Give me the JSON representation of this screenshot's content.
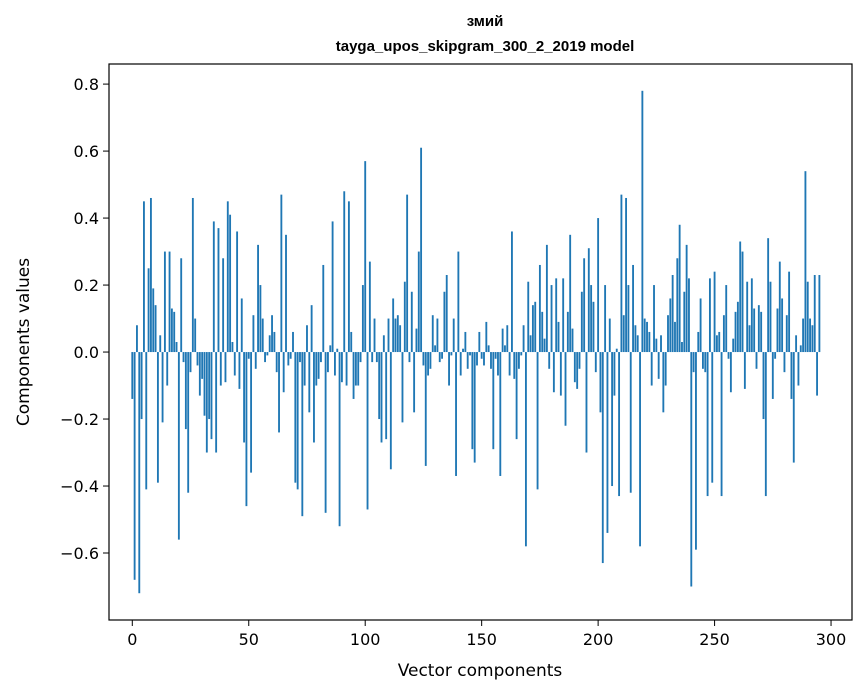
{
  "chart_data": {
    "type": "bar",
    "title": "змий",
    "subtitle": "tayga_upos_skipgram_300_2_2019 model",
    "xlabel": "Vector components",
    "ylabel": "Components values",
    "xlim": [
      -10,
      309
    ],
    "ylim": [
      -0.8,
      0.86
    ],
    "xticks": [
      0,
      50,
      100,
      150,
      200,
      250,
      300
    ],
    "xtick_labels": [
      "0",
      "50",
      "100",
      "150",
      "200",
      "250",
      "300"
    ],
    "yticks": [
      -0.6,
      -0.4,
      -0.2,
      0.0,
      0.2,
      0.4,
      0.6,
      0.8
    ],
    "ytick_labels": [
      "−0.6",
      "−0.4",
      "−0.2",
      "0.0",
      "0.2",
      "0.4",
      "0.6",
      "0.8"
    ],
    "grid": false,
    "bar_color": "#1f77b4",
    "values": [
      -0.14,
      -0.68,
      0.08,
      -0.72,
      -0.2,
      0.45,
      -0.41,
      0.25,
      0.46,
      0.19,
      0.14,
      -0.39,
      0.05,
      -0.21,
      0.3,
      -0.1,
      0.3,
      0.13,
      0.12,
      0.03,
      -0.56,
      0.28,
      -0.03,
      -0.23,
      -0.42,
      -0.06,
      0.46,
      0.1,
      -0.04,
      -0.13,
      -0.08,
      -0.19,
      -0.3,
      -0.2,
      -0.26,
      0.39,
      -0.3,
      0.37,
      -0.1,
      0.28,
      -0.09,
      0.45,
      0.41,
      0.03,
      -0.07,
      0.36,
      -0.11,
      0.16,
      -0.27,
      -0.46,
      -0.02,
      -0.36,
      0.11,
      -0.05,
      0.32,
      0.2,
      0.1,
      -0.03,
      -0.01,
      0.05,
      0.11,
      0.06,
      -0.06,
      -0.24,
      0.47,
      -0.12,
      0.35,
      -0.04,
      -0.02,
      0.06,
      -0.39,
      -0.41,
      -0.03,
      -0.49,
      -0.1,
      0.08,
      -0.18,
      0.14,
      -0.27,
      -0.1,
      -0.08,
      -0.03,
      0.26,
      -0.48,
      -0.06,
      0.02,
      0.39,
      -0.07,
      0.01,
      -0.52,
      -0.09,
      0.48,
      -0.1,
      0.45,
      0.06,
      -0.14,
      -0.1,
      -0.1,
      -0.03,
      0.2,
      0.57,
      -0.47,
      0.27,
      -0.03,
      0.1,
      -0.03,
      -0.2,
      -0.27,
      0.05,
      -0.26,
      0.1,
      -0.35,
      0.16,
      0.1,
      0.11,
      0.08,
      -0.21,
      0.21,
      0.47,
      -0.03,
      0.18,
      -0.18,
      0.07,
      0.3,
      0.61,
      -0.04,
      -0.34,
      -0.07,
      -0.05,
      0.11,
      0.02,
      0.1,
      -0.03,
      -0.02,
      0.18,
      0.23,
      -0.1,
      -0.01,
      0.1,
      -0.37,
      0.3,
      -0.07,
      0.01,
      0.06,
      -0.05,
      -0.01,
      -0.29,
      -0.33,
      -0.04,
      0.06,
      -0.02,
      -0.04,
      0.09,
      0.02,
      -0.05,
      -0.29,
      -0.02,
      -0.07,
      -0.37,
      0.07,
      0.02,
      0.08,
      -0.07,
      0.36,
      -0.08,
      -0.26,
      -0.05,
      -0.01,
      0.08,
      -0.58,
      0.21,
      0.05,
      0.14,
      0.15,
      -0.41,
      0.26,
      0.12,
      0.04,
      0.32,
      -0.05,
      0.2,
      -0.12,
      0.22,
      0.09,
      -0.13,
      0.22,
      -0.22,
      0.12,
      0.35,
      0.07,
      -0.09,
      -0.11,
      -0.05,
      0.18,
      0.28,
      -0.3,
      0.31,
      0.2,
      0.15,
      -0.06,
      0.4,
      -0.18,
      -0.63,
      0.2,
      -0.54,
      0.1,
      -0.4,
      -0.13,
      0.01,
      -0.43,
      0.47,
      0.11,
      0.46,
      0.2,
      -0.42,
      0.26,
      0.08,
      0.05,
      -0.58,
      0.78,
      0.1,
      0.09,
      0.06,
      -0.1,
      0.2,
      0.04,
      -0.08,
      0.05,
      -0.18,
      -0.1,
      0.11,
      0.16,
      0.23,
      0.09,
      0.28,
      0.38,
      0.03,
      0.18,
      0.32,
      0.22,
      -0.7,
      -0.06,
      -0.59,
      0.06,
      0.16,
      -0.05,
      -0.06,
      -0.43,
      0.22,
      -0.39,
      0.24,
      0.05,
      0.06,
      -0.43,
      0.11,
      0.2,
      -0.02,
      -0.12,
      0.04,
      0.12,
      0.15,
      0.33,
      0.3,
      -0.11,
      0.21,
      0.08,
      0.22,
      0.13,
      -0.05,
      0.14,
      0.12,
      -0.2,
      -0.43,
      0.34,
      0.21,
      -0.14,
      -0.02,
      0.13,
      0.27,
      0.16,
      -0.06,
      0.11,
      0.24,
      -0.14,
      -0.33,
      0.05,
      -0.1,
      0.02,
      0.1,
      0.54,
      0.21,
      0.1,
      0.08,
      0.23,
      -0.13,
      0.23
    ]
  }
}
